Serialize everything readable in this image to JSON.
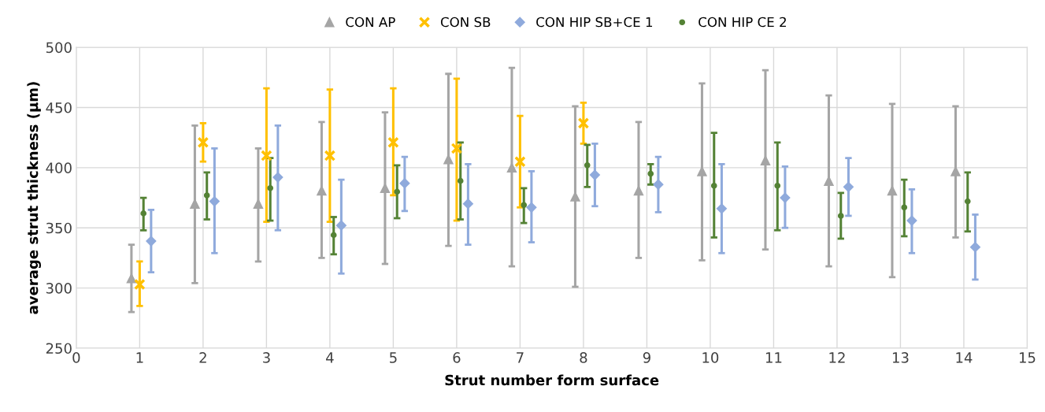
{
  "chart_data": {
    "type": "scatter",
    "xlabel": "Strut number form surface",
    "ylabel": "average strut thickness (µm)",
    "xlim": [
      0,
      15
    ],
    "xticks": [
      0,
      1,
      2,
      3,
      4,
      5,
      6,
      7,
      8,
      9,
      10,
      11,
      12,
      13,
      14,
      15
    ],
    "ylim": [
      250,
      500
    ],
    "yticks": [
      250,
      300,
      350,
      400,
      450,
      500
    ],
    "grid": true,
    "legend": "top",
    "series": [
      {
        "name": "CON AP",
        "color": "#a5a5a5",
        "marker": "triangle",
        "x": [
          0.87,
          1.87,
          2.87,
          3.87,
          4.87,
          5.87,
          6.87,
          7.87,
          8.87,
          9.87,
          10.87,
          11.87,
          12.87,
          13.87
        ],
        "values": [
          308,
          370,
          370,
          381,
          383,
          407,
          400,
          376,
          381,
          397,
          406,
          389,
          381,
          397
        ],
        "errors": [
          [
            280,
            336
          ],
          [
            304,
            435
          ],
          [
            322,
            416
          ],
          [
            325,
            438
          ],
          [
            320,
            446
          ],
          [
            335,
            478
          ],
          [
            318,
            483
          ],
          [
            301,
            451
          ],
          [
            325,
            438
          ],
          [
            323,
            470
          ],
          [
            332,
            481
          ],
          [
            318,
            460
          ],
          [
            309,
            453
          ],
          [
            342,
            451
          ]
        ]
      },
      {
        "name": "CON SB",
        "color": "#ffc000",
        "marker": "cross",
        "x": [
          1,
          2,
          3,
          4,
          5,
          6,
          7,
          8
        ],
        "values": [
          303,
          421,
          410,
          410,
          421,
          416,
          405,
          437
        ],
        "errors": [
          [
            285,
            322
          ],
          [
            405,
            437
          ],
          [
            355,
            466
          ],
          [
            355,
            465
          ],
          [
            377,
            466
          ],
          [
            356,
            474
          ],
          [
            367,
            443
          ],
          [
            420,
            454
          ]
        ]
      },
      {
        "name": "CON HIP SB+CE 1",
        "color": "#8faadc",
        "marker": "diamond",
        "x": [
          1.18,
          2.18,
          3.18,
          4.18,
          5.18,
          6.18,
          7.18,
          8.18,
          9.18,
          10.18,
          11.18,
          12.18,
          13.18,
          14.18
        ],
        "values": [
          339,
          372,
          392,
          352,
          387,
          370,
          367,
          394,
          386,
          366,
          375,
          384,
          356,
          334
        ],
        "errors": [
          [
            313,
            365
          ],
          [
            329,
            416
          ],
          [
            348,
            435
          ],
          [
            312,
            390
          ],
          [
            364,
            409
          ],
          [
            336,
            403
          ],
          [
            338,
            397
          ],
          [
            368,
            420
          ],
          [
            363,
            409
          ],
          [
            329,
            403
          ],
          [
            350,
            401
          ],
          [
            360,
            408
          ],
          [
            329,
            382
          ],
          [
            307,
            361
          ]
        ]
      },
      {
        "name": "CON HIP CE 2",
        "color": "#548235",
        "marker": "circle",
        "x": [
          1.06,
          2.06,
          3.06,
          4.06,
          5.06,
          6.06,
          7.06,
          8.06,
          9.06,
          10.06,
          11.06,
          12.06,
          13.06,
          14.06
        ],
        "values": [
          362,
          377,
          383,
          344,
          380,
          389,
          369,
          402,
          395,
          385,
          385,
          360,
          367,
          372
        ],
        "errors": [
          [
            348,
            375
          ],
          [
            357,
            396
          ],
          [
            356,
            408
          ],
          [
            328,
            359
          ],
          [
            358,
            402
          ],
          [
            357,
            421
          ],
          [
            354,
            383
          ],
          [
            384,
            419
          ],
          [
            386,
            403
          ],
          [
            342,
            429
          ],
          [
            348,
            421
          ],
          [
            341,
            379
          ],
          [
            343,
            390
          ],
          [
            347,
            396
          ]
        ]
      }
    ]
  }
}
